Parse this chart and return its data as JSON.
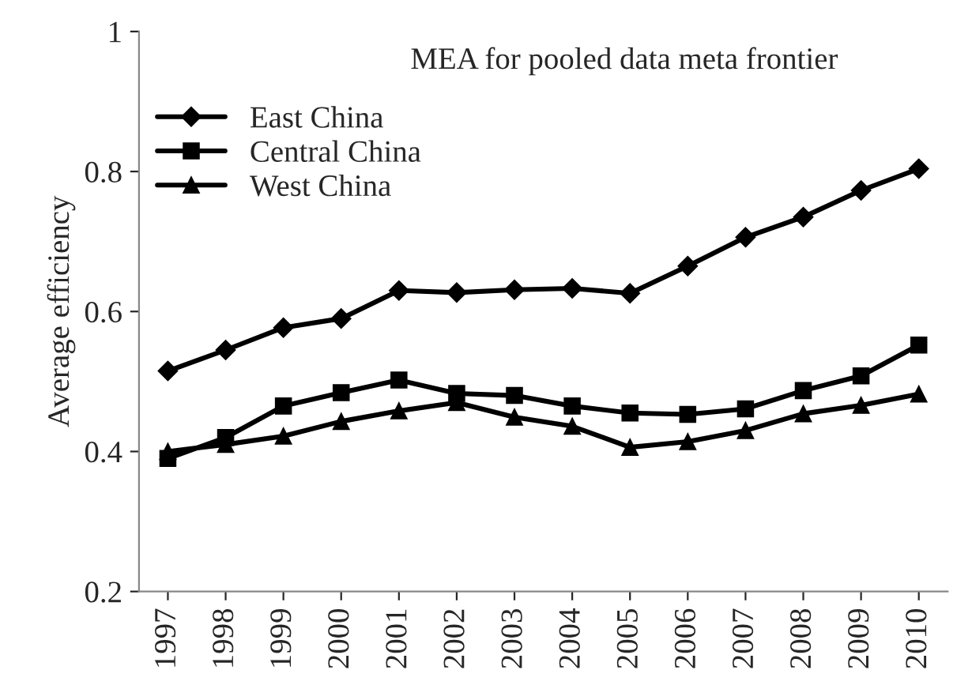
{
  "chart_data": {
    "type": "line",
    "title": "MEA for pooled data meta frontier",
    "ylabel": "Average efficiency",
    "categories": [
      "1997",
      "1998",
      "1999",
      "2000",
      "2001",
      "2002",
      "2003",
      "2004",
      "2005",
      "2006",
      "2007",
      "2008",
      "2009",
      "2010"
    ],
    "series": [
      {
        "name": "East China",
        "color": "#000000",
        "marker": "diamond",
        "values": [
          0.515,
          0.545,
          0.577,
          0.59,
          0.63,
          0.627,
          0.631,
          0.633,
          0.626,
          0.665,
          0.706,
          0.735,
          0.773,
          0.804
        ]
      },
      {
        "name": "Central China",
        "color": "#000000",
        "marker": "square",
        "values": [
          0.39,
          0.42,
          0.465,
          0.484,
          0.502,
          0.483,
          0.48,
          0.465,
          0.455,
          0.453,
          0.461,
          0.487,
          0.508,
          0.552
        ]
      },
      {
        "name": "West China",
        "color": "#000000",
        "marker": "triangle",
        "values": [
          0.4,
          0.41,
          0.422,
          0.443,
          0.458,
          0.47,
          0.449,
          0.436,
          0.406,
          0.414,
          0.43,
          0.454,
          0.466,
          0.482
        ]
      }
    ],
    "ylim": [
      0.2,
      1
    ],
    "yticks": [
      0.2,
      0.4,
      0.6,
      0.8,
      1
    ],
    "grid": false,
    "legend": "top left",
    "line_style": "solid"
  }
}
